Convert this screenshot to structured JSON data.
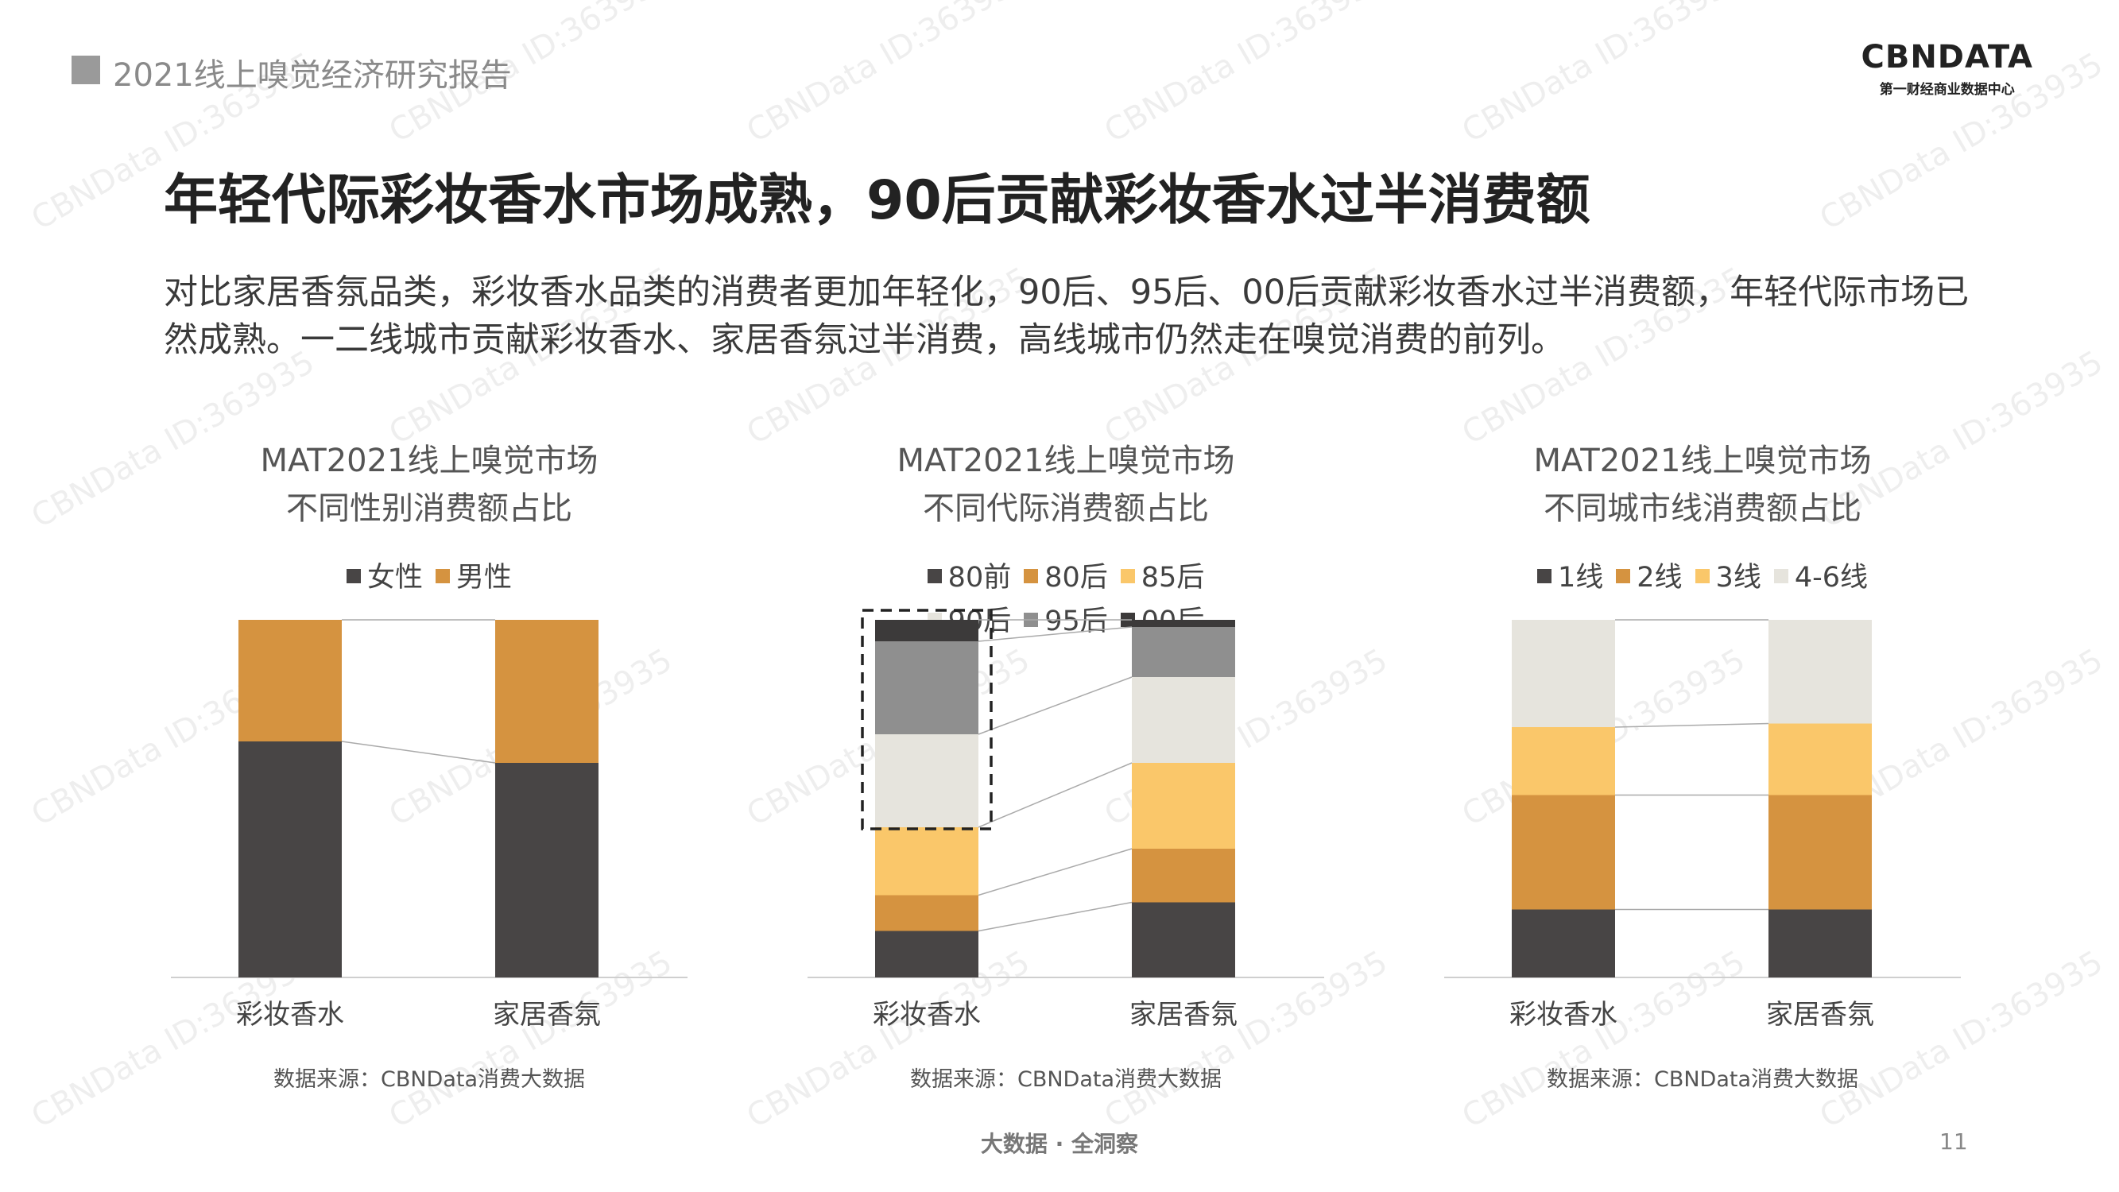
{
  "header": {
    "report_title": "2021线上嗅觉经济研究报告"
  },
  "logo": {
    "wordmark": "CBNDATA",
    "tagline": "第一财经商业数据中心"
  },
  "headline": "年轻代际彩妆香水市场成熟，90后贡献彩妆香水过半消费额",
  "body_text": "对比家居香氛品类，彩妆香水品类的消费者更加年轻化，90后、95后、00后贡献彩妆香水过半消费额，年轻代际市场已然成熟。一二线城市贡献彩妆香水、家居香氛过半消费，高线城市仍然走在嗅觉消费的前列。",
  "footer": {
    "center": "大数据 · 全洞察",
    "page": "11"
  },
  "watermark": "CBNData ID:363935",
  "colors": {
    "dark": "#484545",
    "orange": "#d59340",
    "yellow": "#fac76a",
    "light": "#e6e4dd",
    "gray": "#8f8f8f",
    "darkest": "#3c3a3a",
    "connector": "#aaaaaa"
  },
  "chart_data": [
    {
      "type": "bar",
      "stacked": true,
      "title": "MAT2021线上嗅觉市场",
      "subtitle": "不同性别消费额占比",
      "categories": [
        "彩妆香水",
        "家居香氛"
      ],
      "series": [
        {
          "name": "女性",
          "color": "#484545",
          "values": [
            66,
            60
          ]
        },
        {
          "name": "男性",
          "color": "#d59340",
          "values": [
            34,
            40
          ]
        }
      ],
      "ylim": [
        0,
        100
      ],
      "source": "数据来源：CBNData消费大数据",
      "legend_position": "top"
    },
    {
      "type": "bar",
      "stacked": true,
      "title": "MAT2021线上嗅觉市场",
      "subtitle": "不同代际消费额占比",
      "categories": [
        "彩妆香水",
        "家居香氛"
      ],
      "series": [
        {
          "name": "80前",
          "color": "#484545",
          "values": [
            13,
            21
          ]
        },
        {
          "name": "80后",
          "color": "#d59340",
          "values": [
            10,
            15
          ]
        },
        {
          "name": "85后",
          "color": "#fac76a",
          "values": [
            19,
            24
          ]
        },
        {
          "name": "90后",
          "color": "#e6e4dd",
          "values": [
            26,
            24
          ]
        },
        {
          "name": "95后",
          "color": "#8f8f8f",
          "values": [
            26,
            14
          ]
        },
        {
          "name": "00后",
          "color": "#3c3a3a",
          "values": [
            6,
            2
          ]
        }
      ],
      "ylim": [
        0,
        100
      ],
      "highlight_bar": 0,
      "source": "数据来源：CBNData消费大数据",
      "legend_position": "top"
    },
    {
      "type": "bar",
      "stacked": true,
      "title": "MAT2021线上嗅觉市场",
      "subtitle": "不同城市线消费额占比",
      "categories": [
        "彩妆香水",
        "家居香氛"
      ],
      "series": [
        {
          "name": "1线",
          "color": "#484545",
          "values": [
            19,
            19
          ]
        },
        {
          "name": "2线",
          "color": "#d59340",
          "values": [
            32,
            32
          ]
        },
        {
          "name": "3线",
          "color": "#fac76a",
          "values": [
            19,
            20
          ]
        },
        {
          "name": "4-6线",
          "color": "#e6e4dd",
          "values": [
            30,
            29
          ]
        }
      ],
      "ylim": [
        0,
        100
      ],
      "source": "数据来源：CBNData消费大数据",
      "legend_position": "top"
    }
  ]
}
